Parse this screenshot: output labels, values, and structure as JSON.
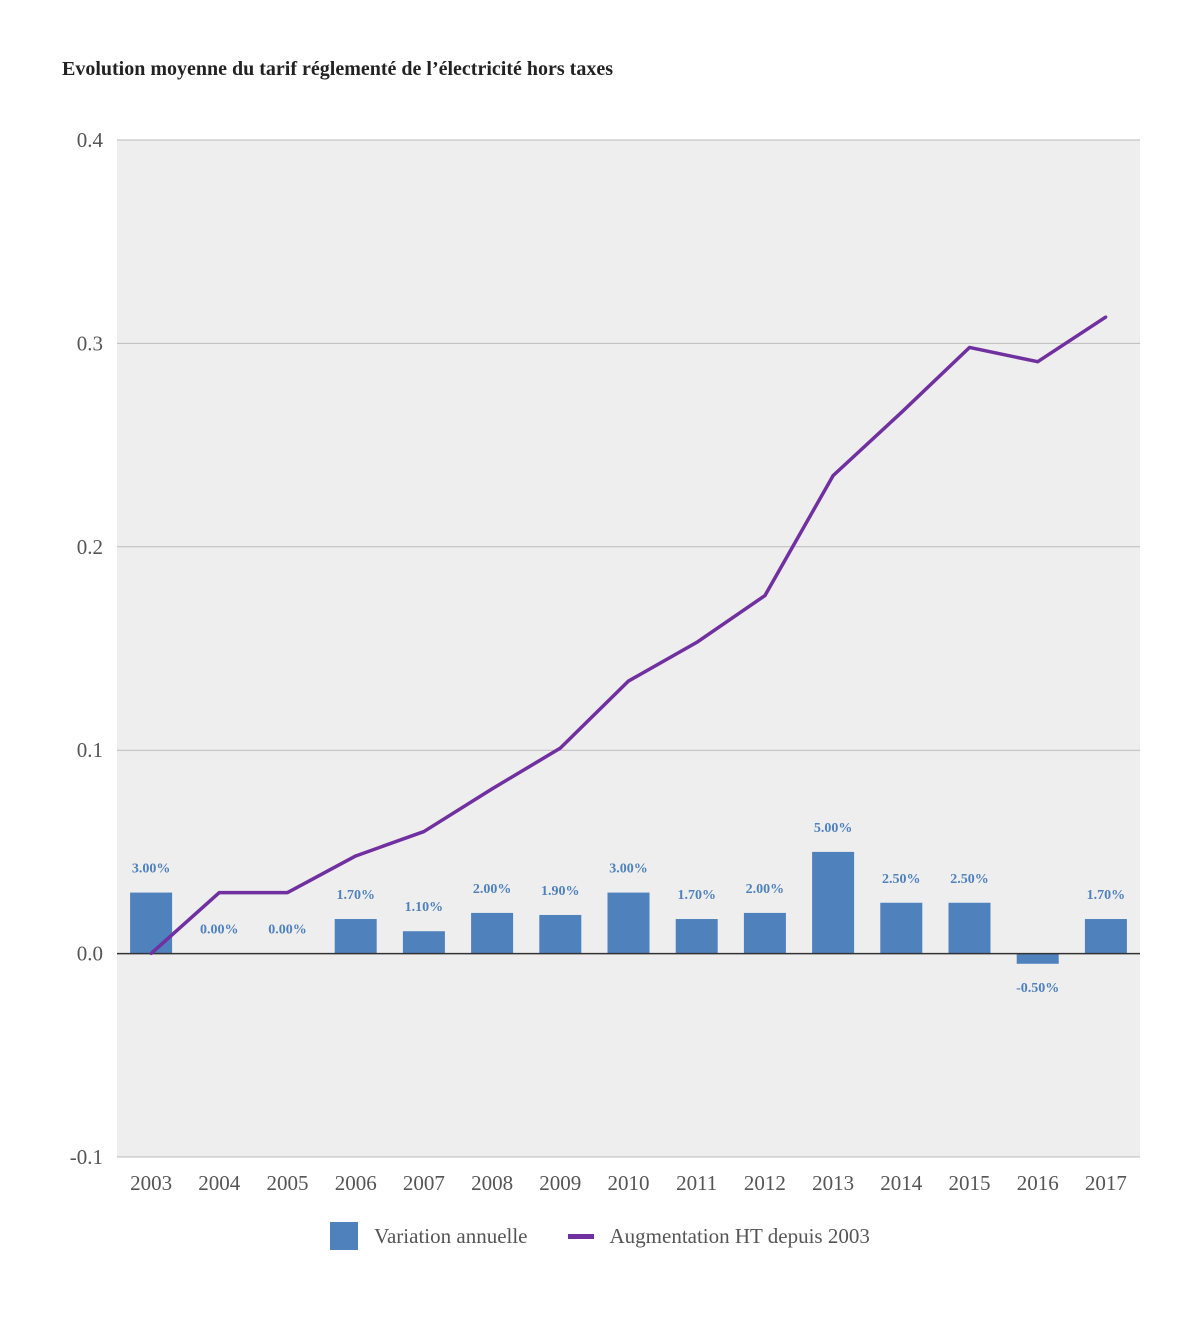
{
  "chart_data": {
    "type": "bar",
    "title": "Evolution moyenne du tarif réglementé de l’électricité hors taxes",
    "xlabel": "",
    "ylabel": "",
    "categories": [
      "2003",
      "2004",
      "2005",
      "2006",
      "2007",
      "2008",
      "2009",
      "2010",
      "2011",
      "2012",
      "2013",
      "2014",
      "2015",
      "2016",
      "2017"
    ],
    "ylim": [
      -0.1,
      0.4
    ],
    "yticks": [
      0.4,
      0.3,
      0.2,
      0.1,
      0.0,
      -0.1
    ],
    "ytick_labels": [
      "0.4",
      "0.3",
      "0.2",
      "0.1",
      "0.0",
      "-0.1"
    ],
    "grid": true,
    "legend_position": "bottom",
    "series": [
      {
        "name": "Variation annuelle",
        "kind": "bar",
        "color": "#4f81bd",
        "values": [
          0.03,
          0.0,
          0.0,
          0.017,
          0.011,
          0.02,
          0.019,
          0.03,
          0.017,
          0.02,
          0.05,
          0.025,
          0.025,
          -0.005,
          0.017
        ],
        "labels": [
          "3.00%",
          "0.00%",
          "0.00%",
          "1.70%",
          "1.10%",
          "2.00%",
          "1.90%",
          "3.00%",
          "1.70%",
          "2.00%",
          "5.00%",
          "2.50%",
          "2.50%",
          "-0.50%",
          "1.70%"
        ]
      },
      {
        "name": "Augmentation HT depuis 2003",
        "kind": "line",
        "color": "#7030a0",
        "values": [
          0.0,
          0.03,
          0.03,
          0.048,
          0.06,
          0.081,
          0.101,
          0.134,
          0.153,
          0.176,
          0.235,
          0.266,
          0.298,
          0.291,
          0.313
        ]
      }
    ],
    "plot_background": "#eeeeee",
    "grid_color": "#bbbbbb",
    "zero_line_color": "#333333"
  }
}
